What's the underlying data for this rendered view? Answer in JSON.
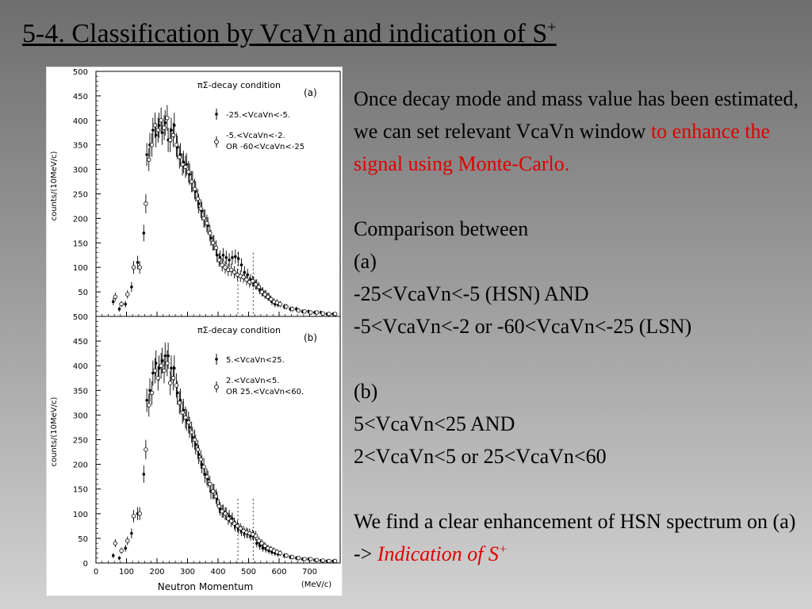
{
  "title": {
    "text": "5-4. Classification by VcaVn and indication of S",
    "sup": "+"
  },
  "text": {
    "p1_a": "Once decay mode and mass value has been estimated, we can set relevant VcaVn window ",
    "p1_b": "to enhance the signal using Monte-Carlo.",
    "comparison": "Comparison between",
    "a_label": "(a)",
    "a_line1": "-25<VcaVn<-5 (HSN) AND",
    "a_line2": "-5<VcaVn<-2 or -60<VcaVn<-25 (LSN)",
    "b_label": "(b)",
    "b_line1": "5<VcaVn<25  AND",
    "b_line2": "2<VcaVn<5 or 25<VcaVn<60",
    "conclusion_a": "We find a clear enhancement of HSN spectrum on (a) -> ",
    "conclusion_b": "Indication of S",
    "conclusion_sup": "+"
  },
  "chart_data": [
    {
      "type": "scatter",
      "panel_label": "(a)",
      "condition": "πΣ-decay condition",
      "ylabel": "counts/(10MeV/c)",
      "xlim": [
        0,
        800
      ],
      "ylim": [
        0,
        500
      ],
      "yticks": [
        50,
        100,
        150,
        200,
        250,
        300,
        350,
        400,
        450,
        500
      ],
      "dashed_lines_x": [
        465,
        515
      ],
      "legend": [
        "-25.<VcaVn<-5.",
        "-5.<VcaVn<-2.",
        "OR -60<VcaVn<-25"
      ],
      "series": [
        {
          "name": "-25.<VcaVn<-5.",
          "marker": "filled",
          "x": [
            60,
            80,
            100,
            120,
            140,
            160,
            170,
            180,
            190,
            200,
            210,
            220,
            230,
            240,
            250,
            260,
            270,
            280,
            290,
            300,
            310,
            320,
            330,
            340,
            350,
            360,
            370,
            380,
            390,
            400,
            410,
            420,
            430,
            440,
            450,
            460,
            470,
            480,
            490,
            500,
            510,
            520,
            530,
            540,
            550,
            560,
            570,
            580,
            590,
            600,
            620,
            640,
            660,
            680,
            700,
            720,
            740,
            760,
            780
          ],
          "y": [
            30,
            15,
            25,
            60,
            110,
            170,
            330,
            350,
            380,
            370,
            390,
            375,
            395,
            360,
            380,
            390,
            345,
            330,
            315,
            310,
            290,
            275,
            255,
            230,
            215,
            200,
            185,
            160,
            150,
            125,
            120,
            125,
            120,
            115,
            120,
            122,
            118,
            105,
            90,
            85,
            75,
            70,
            65,
            55,
            50,
            45,
            40,
            30,
            25,
            25,
            20,
            15,
            15,
            10,
            10,
            8,
            8,
            5,
            5
          ]
        },
        {
          "name": "-5.<VcaVn<-2. OR -60<VcaVn<-25",
          "marker": "open",
          "x": [
            60,
            80,
            100,
            120,
            140,
            160,
            170,
            180,
            190,
            200,
            210,
            220,
            230,
            240,
            250,
            260,
            270,
            280,
            290,
            300,
            310,
            320,
            330,
            340,
            350,
            360,
            370,
            380,
            390,
            400,
            410,
            420,
            430,
            440,
            450,
            460,
            470,
            480,
            490,
            500,
            510,
            520,
            530,
            540,
            550,
            560,
            570,
            580,
            590,
            600,
            620,
            640,
            660,
            680,
            700,
            720,
            740,
            760,
            780
          ],
          "y": [
            40,
            25,
            45,
            100,
            100,
            230,
            320,
            350,
            390,
            380,
            400,
            385,
            405,
            360,
            370,
            350,
            325,
            310,
            305,
            295,
            275,
            260,
            240,
            220,
            200,
            190,
            170,
            150,
            140,
            115,
            105,
            100,
            95,
            95,
            90,
            85,
            82,
            80,
            75,
            70,
            72,
            65,
            60,
            50,
            45,
            40,
            35,
            30,
            28,
            25,
            20,
            15,
            12,
            10,
            8,
            8,
            6,
            5,
            5
          ]
        }
      ]
    },
    {
      "type": "scatter",
      "panel_label": "(b)",
      "condition": "πΣ-decay condition",
      "xlabel": "Neutron Momentum",
      "xunit": "(MeV/c)",
      "ylabel": "counts/(10MeV/c)",
      "xlim": [
        0,
        800
      ],
      "ylim": [
        0,
        500
      ],
      "xticks": [
        0,
        100,
        200,
        300,
        400,
        500,
        600,
        700
      ],
      "yticks": [
        0,
        50,
        100,
        150,
        200,
        250,
        300,
        350,
        400,
        450,
        500
      ],
      "dashed_lines_x": [
        465,
        515
      ],
      "legend": [
        "5.<VcaVn<25.",
        "2.<VcaVn<5.",
        "OR 25.<VcaVn<60."
      ],
      "series": [
        {
          "name": "5.<VcaVn<25.",
          "marker": "filled",
          "x": [
            60,
            80,
            100,
            120,
            140,
            160,
            170,
            180,
            190,
            200,
            210,
            220,
            230,
            240,
            250,
            260,
            270,
            280,
            290,
            300,
            310,
            320,
            330,
            340,
            350,
            360,
            370,
            380,
            390,
            400,
            410,
            420,
            430,
            440,
            450,
            460,
            470,
            480,
            490,
            500,
            510,
            520,
            530,
            540,
            550,
            560,
            570,
            580,
            590,
            600,
            620,
            640,
            660,
            680,
            700,
            720,
            740,
            760,
            780
          ],
          "y": [
            15,
            10,
            30,
            60,
            100,
            180,
            330,
            350,
            385,
            405,
            395,
            410,
            420,
            420,
            395,
            395,
            345,
            330,
            310,
            290,
            275,
            255,
            240,
            220,
            200,
            180,
            170,
            145,
            145,
            130,
            110,
            105,
            100,
            95,
            90,
            75,
            70,
            65,
            60,
            60,
            55,
            55,
            40,
            35,
            30,
            28,
            25,
            22,
            20,
            18,
            15,
            12,
            10,
            8,
            8,
            6,
            5,
            4,
            4
          ]
        },
        {
          "name": "2.<VcaVn<5. OR 25.<VcaVn<60.",
          "marker": "open",
          "x": [
            60,
            80,
            100,
            120,
            140,
            160,
            170,
            180,
            190,
            200,
            210,
            220,
            230,
            240,
            250,
            260,
            270,
            280,
            290,
            300,
            310,
            320,
            330,
            340,
            350,
            360,
            370,
            380,
            390,
            400,
            410,
            420,
            430,
            440,
            450,
            460,
            470,
            480,
            490,
            500,
            510,
            520,
            530,
            540,
            550,
            560,
            570,
            580,
            590,
            600,
            620,
            640,
            660,
            680,
            700,
            720,
            740,
            760,
            780
          ],
          "y": [
            40,
            25,
            45,
            95,
            100,
            230,
            320,
            345,
            390,
            375,
            400,
            390,
            405,
            365,
            375,
            360,
            325,
            305,
            295,
            285,
            265,
            250,
            230,
            210,
            195,
            175,
            160,
            145,
            135,
            115,
            105,
            100,
            90,
            85,
            80,
            75,
            70,
            65,
            62,
            60,
            58,
            55,
            45,
            40,
            35,
            30,
            28,
            25,
            22,
            20,
            15,
            12,
            10,
            8,
            8,
            6,
            5,
            4,
            4
          ]
        }
      ]
    }
  ]
}
